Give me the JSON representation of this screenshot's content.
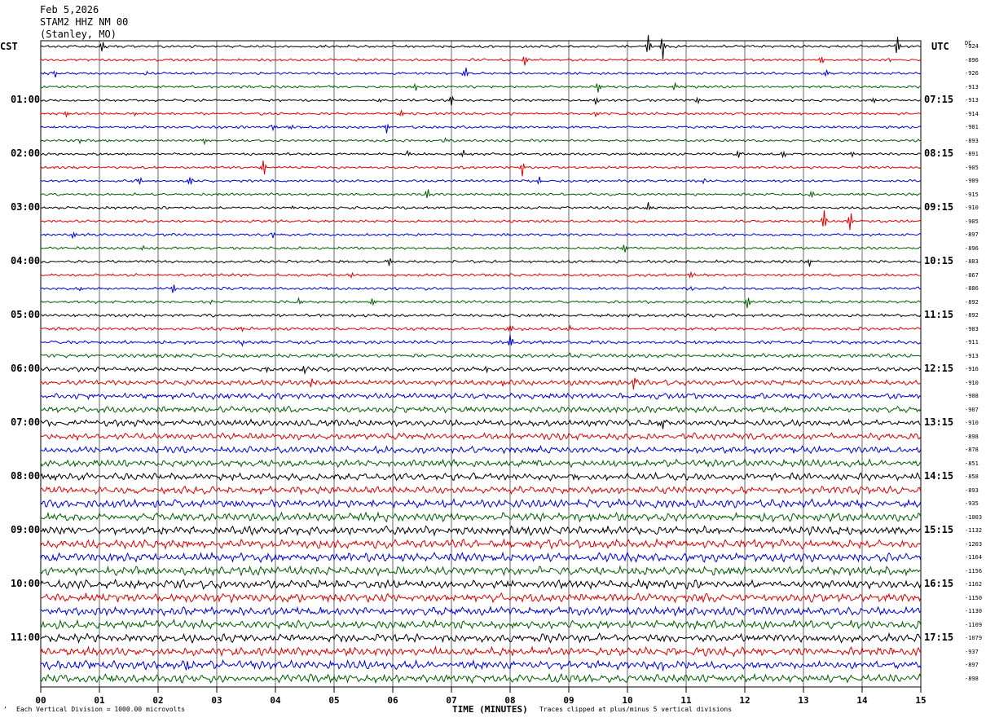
{
  "header": {
    "date": "Feb 5,2026",
    "station": "STAM2 HHZ NM 00",
    "location": "(Stanley, MO)"
  },
  "left_zone": "CST",
  "right_zone": "UTC",
  "dc_label": "DC",
  "footer": {
    "scale_note": "Each Vertical Division = 1000.00 microvolts",
    "clip_note": "Traces clipped at plus/minus 5 vertical divisions",
    "corner_mark": "‘"
  },
  "colors": {
    "trace_cycle": [
      "#000000",
      "#e00000",
      "#0000e0",
      "#006000"
    ],
    "grid": "#000000"
  },
  "chart_data": {
    "type": "line",
    "subtype": "helicorder seismogram",
    "xlabel": "TIME (MINUTES)",
    "xlim": [
      0,
      15
    ],
    "x_ticks": [
      "00",
      "01",
      "02",
      "03",
      "04",
      "05",
      "06",
      "07",
      "08",
      "09",
      "10",
      "11",
      "12",
      "13",
      "14",
      "15"
    ],
    "row_count": 48,
    "left_hour_labels": [
      "01:00",
      "02:00",
      "03:00",
      "04:00",
      "05:00",
      "06:00",
      "07:00",
      "08:00",
      "09:00",
      "10:00",
      "11:00"
    ],
    "right_hour_labels": [
      "07:15",
      "08:15",
      "09:15",
      "10:15",
      "11:15",
      "12:15",
      "13:15",
      "14:15",
      "15:15",
      "16:15",
      "17:15"
    ],
    "dc_offsets": [
      -924,
      -896,
      -926,
      -913,
      -913,
      -914,
      -901,
      -893,
      -891,
      -905,
      -909,
      -915,
      -910,
      -905,
      -897,
      -896,
      -883,
      -867,
      -886,
      -892,
      -892,
      -903,
      -911,
      -913,
      -916,
      -910,
      -908,
      -907,
      -910,
      -898,
      -878,
      -851,
      -858,
      -893,
      -935,
      -1003,
      -1132,
      -1203,
      -1164,
      -1156,
      -1162,
      -1150,
      -1130,
      -1109,
      -1079,
      -937,
      -897,
      -898
    ],
    "noise_level": [
      0.4,
      0.4,
      0.4,
      0.4,
      0.4,
      0.4,
      0.4,
      0.4,
      0.4,
      0.4,
      0.4,
      0.4,
      0.4,
      0.4,
      0.4,
      0.4,
      0.45,
      0.45,
      0.45,
      0.45,
      0.5,
      0.5,
      0.55,
      0.6,
      0.7,
      0.8,
      0.9,
      0.95,
      1.0,
      1.0,
      1.05,
      1.1,
      1.1,
      1.2,
      1.25,
      1.3,
      1.3,
      1.35,
      1.35,
      1.35,
      1.3,
      1.3,
      1.3,
      1.3,
      1.3,
      1.3,
      1.3,
      1.3
    ],
    "events": [
      [
        0,
        1.05,
        2.5
      ],
      [
        0,
        4.8,
        1.5
      ],
      [
        0,
        10.35,
        5
      ],
      [
        0,
        10.6,
        5
      ],
      [
        0,
        14.6,
        5
      ],
      [
        1,
        0.5,
        2
      ],
      [
        1,
        5.4,
        2
      ],
      [
        1,
        8.25,
        2.5
      ],
      [
        1,
        13.3,
        3
      ],
      [
        1,
        14.5,
        2
      ],
      [
        2,
        0.25,
        2
      ],
      [
        2,
        1.8,
        2
      ],
      [
        2,
        7.25,
        4
      ],
      [
        2,
        13.4,
        2
      ],
      [
        3,
        6.4,
        2
      ],
      [
        3,
        9.5,
        2.5
      ],
      [
        3,
        10.8,
        2
      ],
      [
        4,
        5.8,
        2.5
      ],
      [
        4,
        7.0,
        3
      ],
      [
        4,
        9.45,
        4.5
      ],
      [
        4,
        11.2,
        1.5
      ],
      [
        4,
        14.2,
        1.5
      ],
      [
        5,
        0.45,
        2.5
      ],
      [
        5,
        1.6,
        2
      ],
      [
        5,
        6.15,
        2
      ],
      [
        5,
        9.45,
        3
      ],
      [
        6,
        3.95,
        2
      ],
      [
        6,
        4.3,
        2
      ],
      [
        6,
        5.9,
        2
      ],
      [
        6,
        8.15,
        2.5
      ],
      [
        7,
        0.7,
        3
      ],
      [
        7,
        1.15,
        3
      ],
      [
        7,
        2.8,
        2.5
      ],
      [
        7,
        6.9,
        2.5
      ],
      [
        8,
        3.9,
        2
      ],
      [
        8,
        6.25,
        4
      ],
      [
        8,
        7.2,
        2
      ],
      [
        8,
        11.9,
        2
      ],
      [
        8,
        12.65,
        3
      ],
      [
        8,
        13.85,
        3
      ],
      [
        9,
        3.8,
        4
      ],
      [
        9,
        8.2,
        5
      ],
      [
        10,
        1.7,
        2
      ],
      [
        10,
        2.55,
        3
      ],
      [
        10,
        8.5,
        2
      ],
      [
        10,
        11.3,
        2
      ],
      [
        11,
        6.6,
        3.5
      ],
      [
        11,
        13.15,
        2
      ],
      [
        12,
        4.3,
        2
      ],
      [
        12,
        10.35,
        2
      ],
      [
        12,
        12.6,
        2
      ],
      [
        13,
        13.35,
        4
      ],
      [
        13,
        13.8,
        5
      ],
      [
        14,
        0.55,
        2.5
      ],
      [
        14,
        3.95,
        2
      ],
      [
        14,
        7.95,
        2
      ],
      [
        15,
        1.75,
        2.5
      ],
      [
        15,
        9.95,
        2
      ],
      [
        16,
        5.95,
        2
      ],
      [
        16,
        13.1,
        2
      ],
      [
        17,
        5.3,
        1.5
      ],
      [
        17,
        11.1,
        4
      ],
      [
        18,
        0.7,
        3
      ],
      [
        18,
        2.25,
        3.5
      ],
      [
        18,
        11.1,
        2
      ],
      [
        19,
        2.9,
        1.5
      ],
      [
        19,
        4.4,
        1.5
      ],
      [
        19,
        5.65,
        2.5
      ],
      [
        19,
        12.05,
        3
      ],
      [
        20,
        8.35,
        2
      ],
      [
        21,
        3.45,
        2
      ],
      [
        21,
        8.0,
        3
      ],
      [
        21,
        9.0,
        5
      ],
      [
        22,
        3.45,
        3
      ],
      [
        22,
        8.0,
        5
      ],
      [
        23,
        9.0,
        2
      ],
      [
        24,
        3.85,
        2
      ],
      [
        24,
        4.5,
        3
      ],
      [
        24,
        7.6,
        2
      ],
      [
        25,
        4.6,
        3
      ],
      [
        25,
        7.9,
        2.5
      ],
      [
        25,
        10.1,
        4
      ],
      [
        28,
        2.4,
        2
      ],
      [
        28,
        10.6,
        2
      ],
      [
        46,
        2.5,
        2
      ],
      [
        46,
        10.6,
        2
      ]
    ]
  }
}
